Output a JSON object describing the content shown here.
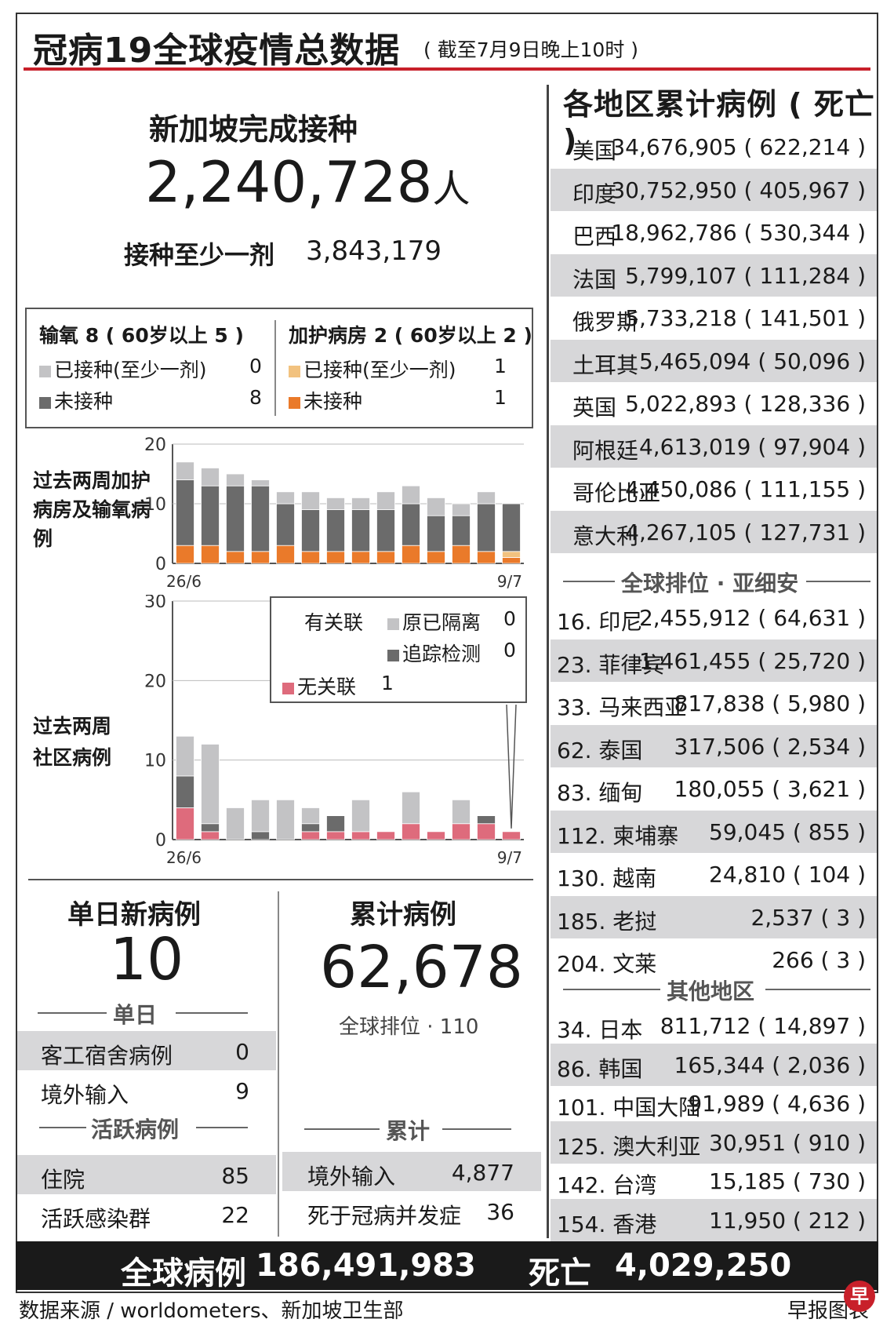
{
  "header": {
    "title": "冠病19全球疫情总数据",
    "subtitle": "( 截至7月9日晚上10时 )"
  },
  "singapore": {
    "vacc_title": "新加坡完成接种",
    "vacc_count": "2,240,728",
    "vacc_unit": "人",
    "one_dose_label": "接种至少一剂",
    "one_dose_value": "3,843,179"
  },
  "severe_legend": {
    "oxygen_head": "输氧 8 ( 60岁以上 5 )",
    "oxygen_vacc_label": "已接种(至少一剂)",
    "oxygen_vacc_value": "0",
    "oxygen_unvacc_label": "未接种",
    "oxygen_unvacc_value": "8",
    "icu_head": "加护病房 2 ( 60岁以上 2 )",
    "icu_vacc_label": "已接种(至少一剂)",
    "icu_vacc_value": "1",
    "icu_unvacc_label": "未接种",
    "icu_unvacc_value": "1"
  },
  "community_legend": {
    "linked_label": "有关联",
    "quarantined_label": "原已隔离",
    "quarantined_value": "0",
    "traced_label": "追踪检测",
    "traced_value": "0",
    "unlinked_label": "无关联",
    "unlinked_value": "1"
  },
  "colors": {
    "grey_light": "#c3c3c5",
    "grey_dark": "#6b6b6b",
    "orange": "#ea7a2a",
    "orange_light": "#f2c27f",
    "pink": "#de6b7c",
    "red": "#c8202a"
  },
  "chart_data": [
    {
      "type": "bar",
      "title": "过去两周加护病房及输氧病例",
      "stacked": true,
      "x_start_label": "26/6",
      "x_end_label": "9/7",
      "yticks": [
        0,
        10,
        20
      ],
      "ylim": [
        0,
        20
      ],
      "categories": [
        "26/6",
        "27/6",
        "28/6",
        "29/6",
        "30/6",
        "1/7",
        "2/7",
        "3/7",
        "4/7",
        "5/7",
        "6/7",
        "7/7",
        "8/7",
        "9/7"
      ],
      "series": [
        {
          "name": "加护病房 未接种",
          "color": "#ea7a2a",
          "values": [
            3,
            3,
            2,
            2,
            3,
            2,
            2,
            2,
            2,
            3,
            2,
            3,
            2,
            1
          ]
        },
        {
          "name": "加护病房 已接种(至少一剂)",
          "color": "#f2c27f",
          "values": [
            0,
            0,
            0,
            0,
            0,
            0,
            0,
            0,
            0,
            0,
            0,
            0,
            0,
            1
          ]
        },
        {
          "name": "输氧 未接种",
          "color": "#6b6b6b",
          "values": [
            11,
            10,
            11,
            11,
            7,
            7,
            7,
            7,
            7,
            7,
            6,
            5,
            8,
            8
          ]
        },
        {
          "name": "输氧 已接种(至少一剂)",
          "color": "#c3c3c5",
          "values": [
            3,
            3,
            2,
            1,
            2,
            3,
            2,
            2,
            3,
            3,
            3,
            2,
            2,
            0
          ]
        }
      ]
    },
    {
      "type": "bar",
      "title": "过去两周社区病例",
      "stacked": true,
      "x_start_label": "26/6",
      "x_end_label": "9/7",
      "yticks": [
        0,
        10,
        20,
        30
      ],
      "ylim": [
        0,
        30
      ],
      "categories": [
        "26/6",
        "27/6",
        "28/6",
        "29/6",
        "30/6",
        "1/7",
        "2/7",
        "3/7",
        "4/7",
        "5/7",
        "6/7",
        "7/7",
        "8/7",
        "9/7"
      ],
      "series": [
        {
          "name": "无关联",
          "color": "#de6b7c",
          "values": [
            4,
            1,
            0,
            0,
            0,
            1,
            1,
            1,
            1,
            2,
            1,
            2,
            2,
            1
          ]
        },
        {
          "name": "追踪检测",
          "color": "#6b6b6b",
          "values": [
            4,
            1,
            0,
            1,
            0,
            1,
            2,
            0,
            0,
            0,
            0,
            0,
            1,
            0
          ]
        },
        {
          "name": "原已隔离",
          "color": "#c3c3c5",
          "values": [
            5,
            10,
            4,
            4,
            5,
            2,
            0,
            4,
            0,
            4,
            0,
            3,
            0,
            0
          ]
        }
      ]
    }
  ],
  "daily": {
    "title": "单日新病例",
    "value": "10",
    "single_day_label": "单日",
    "dorm_label": "客工宿舍病例",
    "dorm_value": "0",
    "imported_label": "境外输入",
    "imported_value": "9",
    "active_label": "活跃病例",
    "hospital_label": "住院",
    "hospital_value": "85",
    "clusters_label": "活跃感染群",
    "clusters_value": "22"
  },
  "cumulative": {
    "title": "累计病例",
    "value": "62,678",
    "rank": "全球排位 · 110",
    "section_label": "累计",
    "imported_label": "境外输入",
    "imported_value": "4,877",
    "deaths_label": "死于冠病并发症",
    "deaths_value": "36"
  },
  "regions": {
    "title": "各地区累计病例 ( 死亡 )",
    "top": [
      {
        "name": "美国",
        "value": "34,676,905 ( 622,214 )"
      },
      {
        "name": "印度",
        "value": "30,752,950 ( 405,967 )"
      },
      {
        "name": "巴西",
        "value": "18,962,786 ( 530,344 )"
      },
      {
        "name": "法国",
        "value": "5,799,107 ( 111,284 )"
      },
      {
        "name": "俄罗斯",
        "value": "5,733,218 ( 141,501 )"
      },
      {
        "name": "土耳其",
        "value": "5,465,094 ( 50,096 )"
      },
      {
        "name": "英国",
        "value": "5,022,893 ( 128,336 )"
      },
      {
        "name": "阿根廷",
        "value": "4,613,019 ( 97,904 )"
      },
      {
        "name": "哥伦比亚",
        "value": "4,450,086 ( 111,155 )"
      },
      {
        "name": "意大利",
        "value": "4,267,105 ( 127,731 )"
      }
    ],
    "asean_label": "全球排位 · 亚细安",
    "asean": [
      {
        "name": "16. 印尼",
        "value": "2,455,912 ( 64,631 )"
      },
      {
        "name": "23. 菲律宾",
        "value": "1,461,455 ( 25,720 )"
      },
      {
        "name": "33. 马来西亚",
        "value": "817,838 ( 5,980 )"
      },
      {
        "name": "62. 泰国",
        "value": "317,506 ( 2,534 )"
      },
      {
        "name": "83. 缅甸",
        "value": "180,055 ( 3,621 )"
      },
      {
        "name": "112. 柬埔寨",
        "value": "59,045 ( 855 )"
      },
      {
        "name": "130. 越南",
        "value": "24,810 ( 104 )"
      },
      {
        "name": "185. 老挝",
        "value": "2,537 ( 3 )"
      },
      {
        "name": "204. 文莱",
        "value": "266 ( 3 )"
      }
    ],
    "other_label": "其他地区",
    "other": [
      {
        "name": "34. 日本",
        "value": "811,712 ( 14,897 )"
      },
      {
        "name": "86. 韩国",
        "value": "165,344 ( 2,036 )"
      },
      {
        "name": "101. 中国大陆",
        "value": "91,989 ( 4,636 )"
      },
      {
        "name": "125. 澳大利亚",
        "value": "30,951 ( 910 )"
      },
      {
        "name": "142. 台湾",
        "value": "15,185 ( 730 )"
      },
      {
        "name": "154. 香港",
        "value": "11,950 ( 212 )"
      }
    ]
  },
  "global": {
    "cases_label": "全球病例",
    "cases_value": "186,491,983",
    "deaths_label": "死亡",
    "deaths_value": "4,029,250"
  },
  "footer": {
    "source": "数据来源 / worldometers、新加坡卫生部",
    "credit": "早报图表",
    "logo_char": "早"
  }
}
